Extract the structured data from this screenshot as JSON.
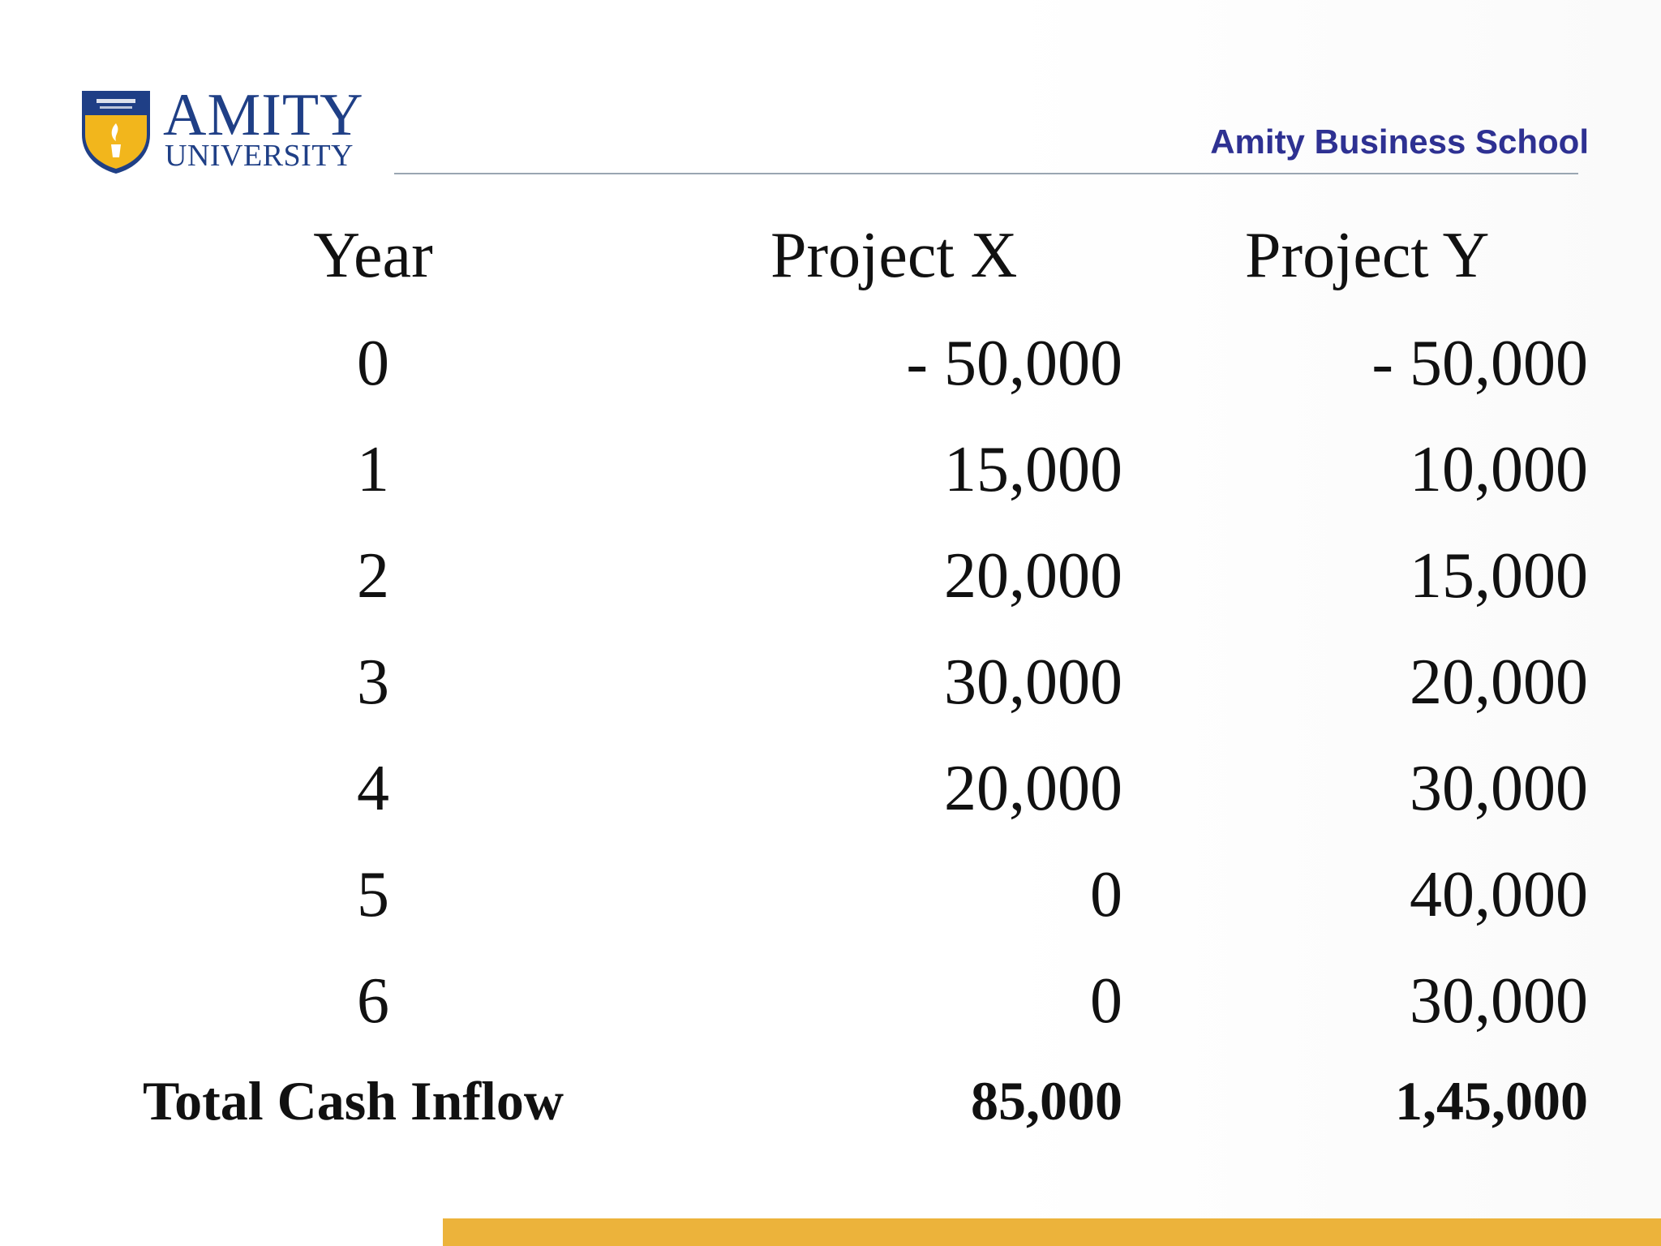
{
  "header": {
    "logo_word_1": "AMITY",
    "logo_word_2": "UNIVERSITY",
    "logo_crest_text": "AMITY UNIVERSITY",
    "school_name": "Amity Business School"
  },
  "table": {
    "headers": [
      "Year",
      "Project X",
      "Project Y"
    ],
    "rows": [
      {
        "year": "0",
        "x": "- 50,000",
        "y": "- 50,000"
      },
      {
        "year": "1",
        "x": "15,000",
        "y": "10,000"
      },
      {
        "year": "2",
        "x": "20,000",
        "y": "15,000"
      },
      {
        "year": "3",
        "x": "30,000",
        "y": "20,000"
      },
      {
        "year": "4",
        "x": "20,000",
        "y": "30,000"
      },
      {
        "year": "5",
        "x": "0",
        "y": "40,000"
      },
      {
        "year": "6",
        "x": "0",
        "y": "30,000"
      }
    ],
    "total": {
      "label": "Total Cash Inflow",
      "x": "85,000",
      "y": "1,45,000"
    }
  },
  "colors": {
    "brand_blue": "#1f3f86",
    "school_name": "#2e3192",
    "crest_gold": "#f2b61c",
    "footer_bar": "#ecb33b"
  }
}
